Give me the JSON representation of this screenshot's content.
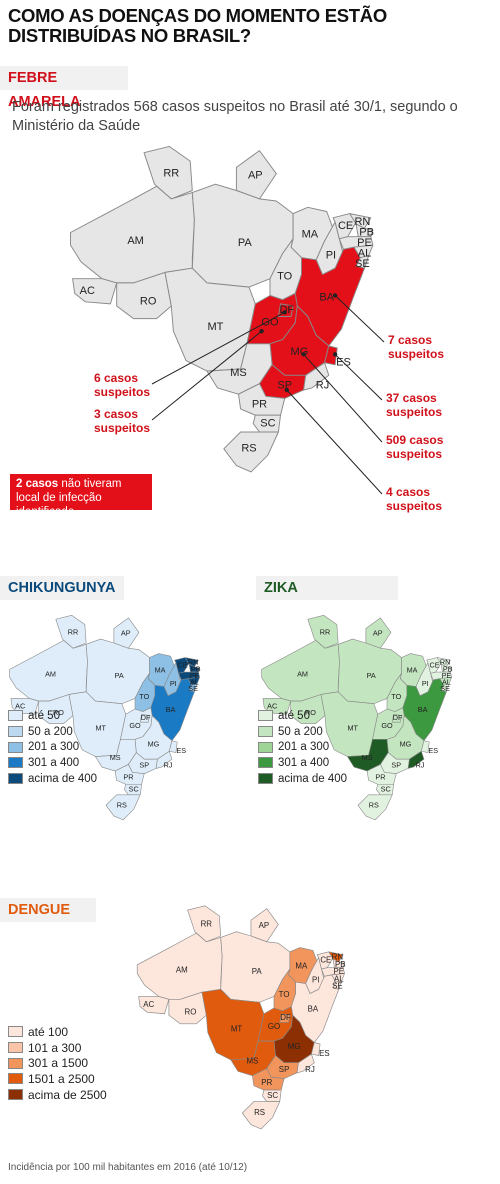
{
  "title": "COMO AS DOENÇAS DO MOMENTO ESTÃO DISTRIBUÍDAS NO BRASIL?",
  "colors": {
    "grey_fill": "#e6e6e6",
    "red_fill": "#e3101a",
    "red_text": "#d0101a",
    "stroke": "#888888"
  },
  "febre": {
    "tag": "FEBRE AMARELA",
    "intro": "Foram registrados 568 casos suspeitos no Brasil até 30/1, segundo o Ministério da Saúde",
    "highlighted_states": [
      "DF",
      "GO",
      "MG",
      "SP",
      "ES",
      "BA"
    ],
    "callouts": [
      {
        "state": "BA",
        "label": "7 casos suspeitos",
        "cases": 7
      },
      {
        "state": "DF",
        "label": "6 casos suspeitos",
        "cases": 6
      },
      {
        "state": "GO",
        "label": "3 casos suspeitos",
        "cases": 3
      },
      {
        "state": "ES",
        "label": "37 casos suspeitos",
        "cases": 37
      },
      {
        "state": "MG",
        "label": "509 casos suspeitos",
        "cases": 509
      },
      {
        "state": "SP",
        "label": "4 casos suspeitos",
        "cases": 4
      }
    ],
    "note_bold": "2 casos",
    "note_rest": " não tiveram local de infecção identificado"
  },
  "chikungunya": {
    "tag": "CHIKUNGUNYA",
    "legend": [
      {
        "label": "até 50",
        "color": "#deedf9"
      },
      {
        "label": "50 a 200",
        "color": "#bcd9f0"
      },
      {
        "label": "201 a 300",
        "color": "#8ec0e6"
      },
      {
        "label": "301 a 400",
        "color": "#1a7bc4"
      },
      {
        "label": "acima de 400",
        "color": "#0b4a7a"
      }
    ],
    "state_class": {
      "RN": 4,
      "PB": 4,
      "PE": 4,
      "AL": 4,
      "CE": 4,
      "BA": 3,
      "MA": 2,
      "PI": 2,
      "TO": 2,
      "SE": 2
    }
  },
  "zika": {
    "tag": "ZIKA",
    "legend": [
      {
        "label": "até 50",
        "color": "#e2f2e0"
      },
      {
        "label": "50 a 200",
        "color": "#c3e5bf"
      },
      {
        "label": "201 a 300",
        "color": "#9fd497"
      },
      {
        "label": "301 a 400",
        "color": "#3d9940"
      },
      {
        "label": "acima de 400",
        "color": "#1f5b25"
      }
    ],
    "state_class": {
      "BA": 3,
      "MS": 4,
      "RJ": 4,
      "AM": 1,
      "PA": 1,
      "AC": 1,
      "RO": 1,
      "MT": 1,
      "TO": 1,
      "MA": 1,
      "GO": 1,
      "MG": 1,
      "RR": 1,
      "AP": 1,
      "DF": 1,
      "AL": 1
    }
  },
  "dengue": {
    "tag": "DENGUE",
    "legend": [
      {
        "label": "até 100",
        "color": "#fde6dc"
      },
      {
        "label": "101 a 300",
        "color": "#f9c4a8"
      },
      {
        "label": "301 a 1500",
        "color": "#f2955c"
      },
      {
        "label": "1501 a 2500",
        "color": "#e05b0e"
      },
      {
        "label": "acima de 2500",
        "color": "#8c3004"
      }
    ],
    "state_class": {
      "MG": 4,
      "MT": 3,
      "MS": 3,
      "GO": 3,
      "RN": 3,
      "SP": 2,
      "MA": 2,
      "TO": 2,
      "DF": 2,
      "PR": 2,
      "RS": 0,
      "SC": 0,
      "PB": 0,
      "PE": 0
    }
  },
  "footer": "Incidência por 100 mil habitantes em 2016 (até 10/12)"
}
